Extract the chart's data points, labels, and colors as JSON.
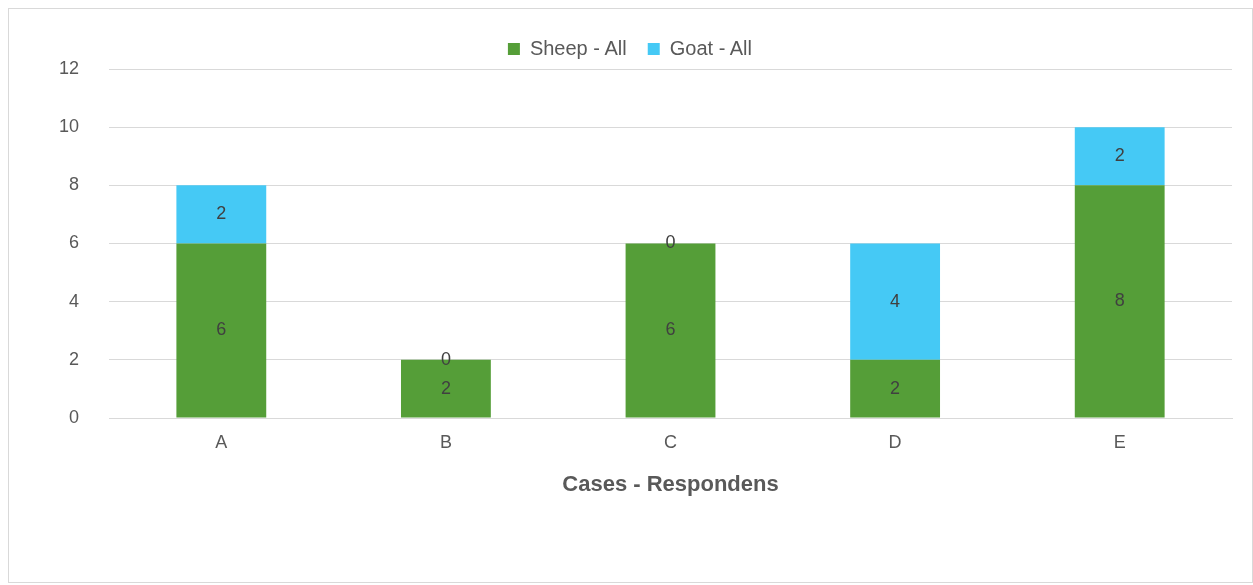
{
  "chart_data": {
    "type": "bar",
    "stacked": true,
    "xlabel": "Cases - Respondens",
    "categories": [
      "A",
      "B",
      "C",
      "D",
      "E"
    ],
    "series": [
      {
        "name": "Sheep - All",
        "color": "#559e38",
        "values": [
          6,
          2,
          6,
          2,
          8
        ]
      },
      {
        "name": "Goat - All",
        "color": "#45c9f5",
        "values": [
          2,
          0,
          0,
          4,
          2
        ]
      }
    ],
    "ylim": [
      0,
      12
    ],
    "yticks": [
      0,
      2,
      4,
      6,
      8,
      10,
      12
    ],
    "grid": "y",
    "legend": "top",
    "data_labels": true
  }
}
